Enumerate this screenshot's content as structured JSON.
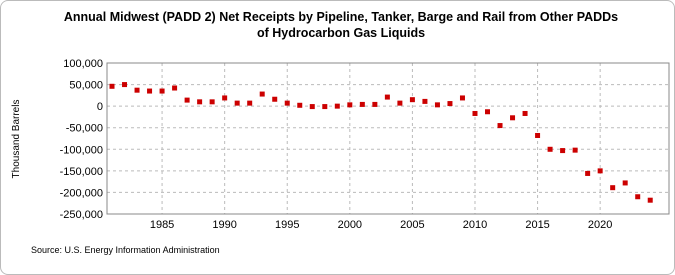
{
  "chart_data": {
    "type": "scatter",
    "title": [
      "Annual Midwest (PADD 2) Net Receipts by Pipeline, Tanker, Barge and Rail from Other PADDs",
      "of Hydrocarbon Gas Liquids"
    ],
    "y_label": "Thousand Barrels",
    "source": "Source: U.S. Energy Information Administration",
    "color": "#cc0000",
    "grid": true,
    "x": [
      1981,
      1982,
      1983,
      1984,
      1985,
      1986,
      1987,
      1988,
      1989,
      1990,
      1991,
      1992,
      1993,
      1994,
      1995,
      1996,
      1997,
      1998,
      1999,
      2000,
      2001,
      2002,
      2003,
      2004,
      2005,
      2006,
      2007,
      2008,
      2009,
      2010,
      2011,
      2012,
      2013,
      2014,
      2015,
      2016,
      2017,
      2018,
      2019,
      2020,
      2021,
      2022,
      2023,
      2024
    ],
    "values": [
      46000,
      50000,
      37000,
      35000,
      35000,
      42000,
      14000,
      10000,
      10000,
      19000,
      7000,
      7000,
      28000,
      16000,
      7000,
      2000,
      -1000,
      -1000,
      0,
      3000,
      4000,
      4000,
      21000,
      7000,
      15000,
      11000,
      3000,
      6000,
      19000,
      -17000,
      -13000,
      -45000,
      -27000,
      -17000,
      -68000,
      -100000,
      -103000,
      -102000,
      -156000,
      -150000,
      -189000,
      -178000,
      -210000,
      -218000
    ],
    "xlim": [
      1980.6,
      2025.5
    ],
    "xticks": [
      1985,
      1990,
      1995,
      2000,
      2005,
      2010,
      2015,
      2020
    ],
    "ylim": [
      -250000,
      100000
    ],
    "yticks": [
      {
        "value": -250000,
        "label": "-250,000"
      },
      {
        "value": -200000,
        "label": "-200,000"
      },
      {
        "value": -150000,
        "label": "-150,000"
      },
      {
        "value": -100000,
        "label": "-100,000"
      },
      {
        "value": -50000,
        "label": "-50,000"
      },
      {
        "value": 0,
        "label": "0"
      },
      {
        "value": 50000,
        "label": "50,000"
      },
      {
        "value": 100000,
        "label": "100,000"
      }
    ]
  }
}
